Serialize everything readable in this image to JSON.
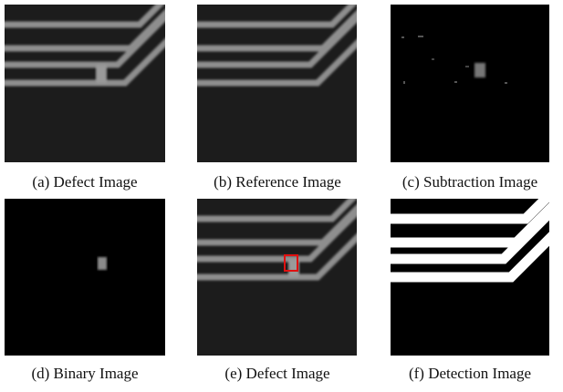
{
  "panels": [
    {
      "caption": "(a) Defect Image"
    },
    {
      "caption": "(b) Reference Image"
    },
    {
      "caption": "(c) Subtraction Image"
    },
    {
      "caption": "(d) Binary Image"
    },
    {
      "caption": "(e) Defect Image"
    },
    {
      "caption": "(f) Detection Image"
    }
  ]
}
